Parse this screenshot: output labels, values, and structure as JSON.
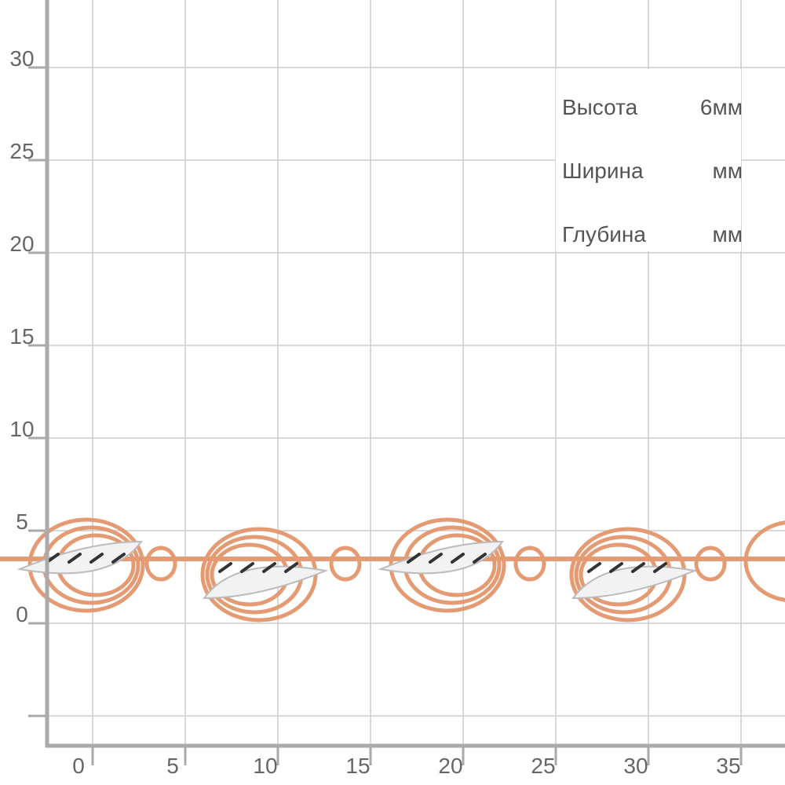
{
  "y_axis_labels": [
    "30",
    "25",
    "20",
    "15",
    "10",
    "5",
    "0"
  ],
  "x_axis_labels": [
    "0",
    "5",
    "10",
    "15",
    "20",
    "25",
    "30",
    "35"
  ],
  "specs": [
    {
      "label": "Высота",
      "value": "6мм"
    },
    {
      "label": "Ширина",
      "value": "мм"
    },
    {
      "label": "Глубина",
      "value": "мм"
    }
  ]
}
